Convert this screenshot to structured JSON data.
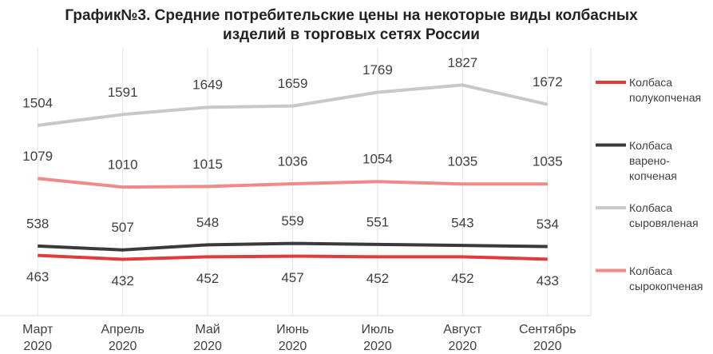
{
  "chart_data": {
    "type": "line",
    "title": "График№3. Средние потребительские цены на некоторые виды колбасных изделий в торговых сетях России",
    "categories": [
      "Март\n2020",
      "Апрель\n2020",
      "Май\n2020",
      "Июнь\n2020",
      "Июль\n2020",
      "Август\n2020",
      "Сентябрь\n2020"
    ],
    "ylim": [
      0,
      1900
    ],
    "grid": true,
    "series": [
      {
        "name": "Колбаса полукопченая",
        "color": "#e03c3c",
        "values": [
          463,
          432,
          452,
          457,
          452,
          452,
          433
        ]
      },
      {
        "name": "Колбаса варено-копченая",
        "color": "#3a3a3a",
        "values": [
          538,
          507,
          548,
          559,
          551,
          543,
          534
        ]
      },
      {
        "name": "Колбаса сыровяленая",
        "color": "#c8c8c8",
        "values": [
          1504,
          1591,
          1649,
          1659,
          1769,
          1827,
          1672
        ]
      },
      {
        "name": "Колбаса сырокопченая",
        "color": "#f08a8a",
        "values": [
          1079,
          1010,
          1015,
          1036,
          1054,
          1035,
          1035
        ]
      }
    ]
  }
}
